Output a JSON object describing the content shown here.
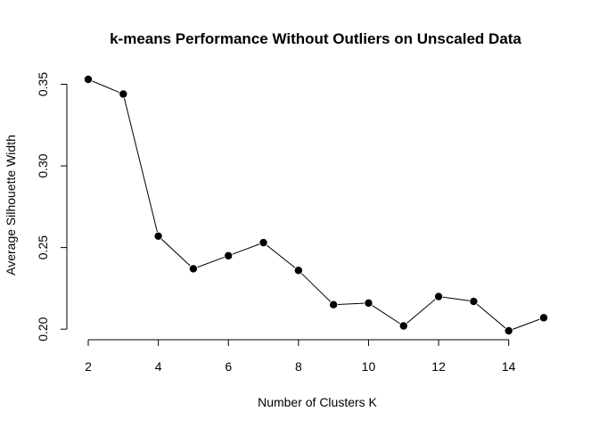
{
  "chart_data": {
    "type": "line",
    "title": "k-means Performance Without Outliers on Unscaled Data",
    "xlabel": "Number of Clusters K",
    "ylabel": "Average Silhouette Width",
    "x": [
      2,
      3,
      4,
      5,
      6,
      7,
      8,
      9,
      10,
      11,
      12,
      13,
      14,
      15
    ],
    "series": [
      {
        "name": "Average Silhouette Width",
        "values": [
          0.353,
          0.344,
          0.257,
          0.237,
          0.245,
          0.253,
          0.236,
          0.215,
          0.216,
          0.202,
          0.22,
          0.217,
          0.199,
          0.207
        ]
      }
    ],
    "xlim": [
      2,
      15
    ],
    "ylim": [
      0.199,
      0.353
    ],
    "xticks": [
      2,
      4,
      6,
      8,
      10,
      12,
      14
    ],
    "xtick_labels": [
      "2",
      "4",
      "6",
      "8",
      "10",
      "12",
      "14"
    ],
    "yticks": [
      0.2,
      0.25,
      0.3,
      0.35
    ],
    "ytick_labels": [
      "0.20",
      "0.25",
      "0.30",
      "0.35"
    ],
    "grid": false,
    "legend": "none",
    "marker": "filled-circle",
    "line_color": "#000000"
  }
}
